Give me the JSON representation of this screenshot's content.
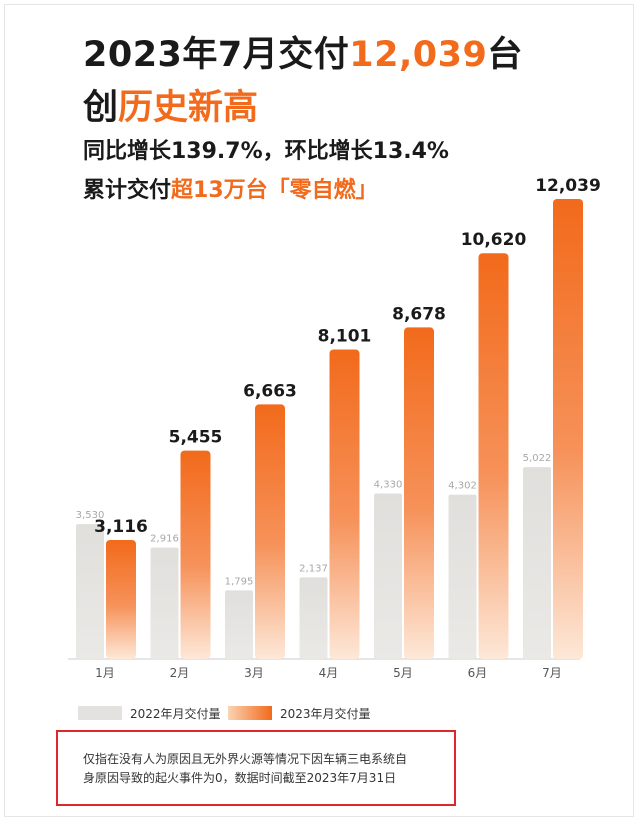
{
  "headline": {
    "line1_pre": "2023年7月交付",
    "line1_num": "12,039",
    "line1_post": "台",
    "line2_pre": "创",
    "line2_accent": "历史新高",
    "line3": "同比增长139.7%，环比增长13.4%",
    "line4_pre": "累计交付",
    "line4_accent": "超13万台「零自燃」"
  },
  "colors": {
    "accent": "#f26a1b",
    "gray_bar": "#e4e2df",
    "note_border": "#e0262b"
  },
  "chart_data": {
    "type": "bar",
    "categories": [
      "1月",
      "2月",
      "3月",
      "4月",
      "5月",
      "6月",
      "7月"
    ],
    "series": [
      {
        "name": "2022年月交付量",
        "values": [
          3530,
          2916,
          1795,
          2137,
          4330,
          4302,
          5022
        ],
        "labels": [
          "3,530",
          "2,916",
          "1,795",
          "2,137",
          "4,330",
          "4,302",
          "5,022"
        ],
        "color": "#e4e2df"
      },
      {
        "name": "2023年月交付量",
        "values": [
          3116,
          5455,
          6663,
          8101,
          8678,
          10620,
          12039
        ],
        "labels": [
          "3,116",
          "5,455",
          "6,663",
          "8,101",
          "8,678",
          "10,620",
          "12,039"
        ],
        "color": "#f26a1b"
      }
    ],
    "ylim": [
      0,
      12039
    ],
    "legend_position": "bottom-left",
    "grid": false
  },
  "legend": {
    "item_2022": "2022年月交付量",
    "item_2023": "2023年月交付量"
  },
  "note": {
    "line1": "仅指在没有人为原因且无外界火源等情况下因车辆三电系统自",
    "line2": "身原因导致的起火事件为0，数据时间截至2023年7月31日"
  }
}
